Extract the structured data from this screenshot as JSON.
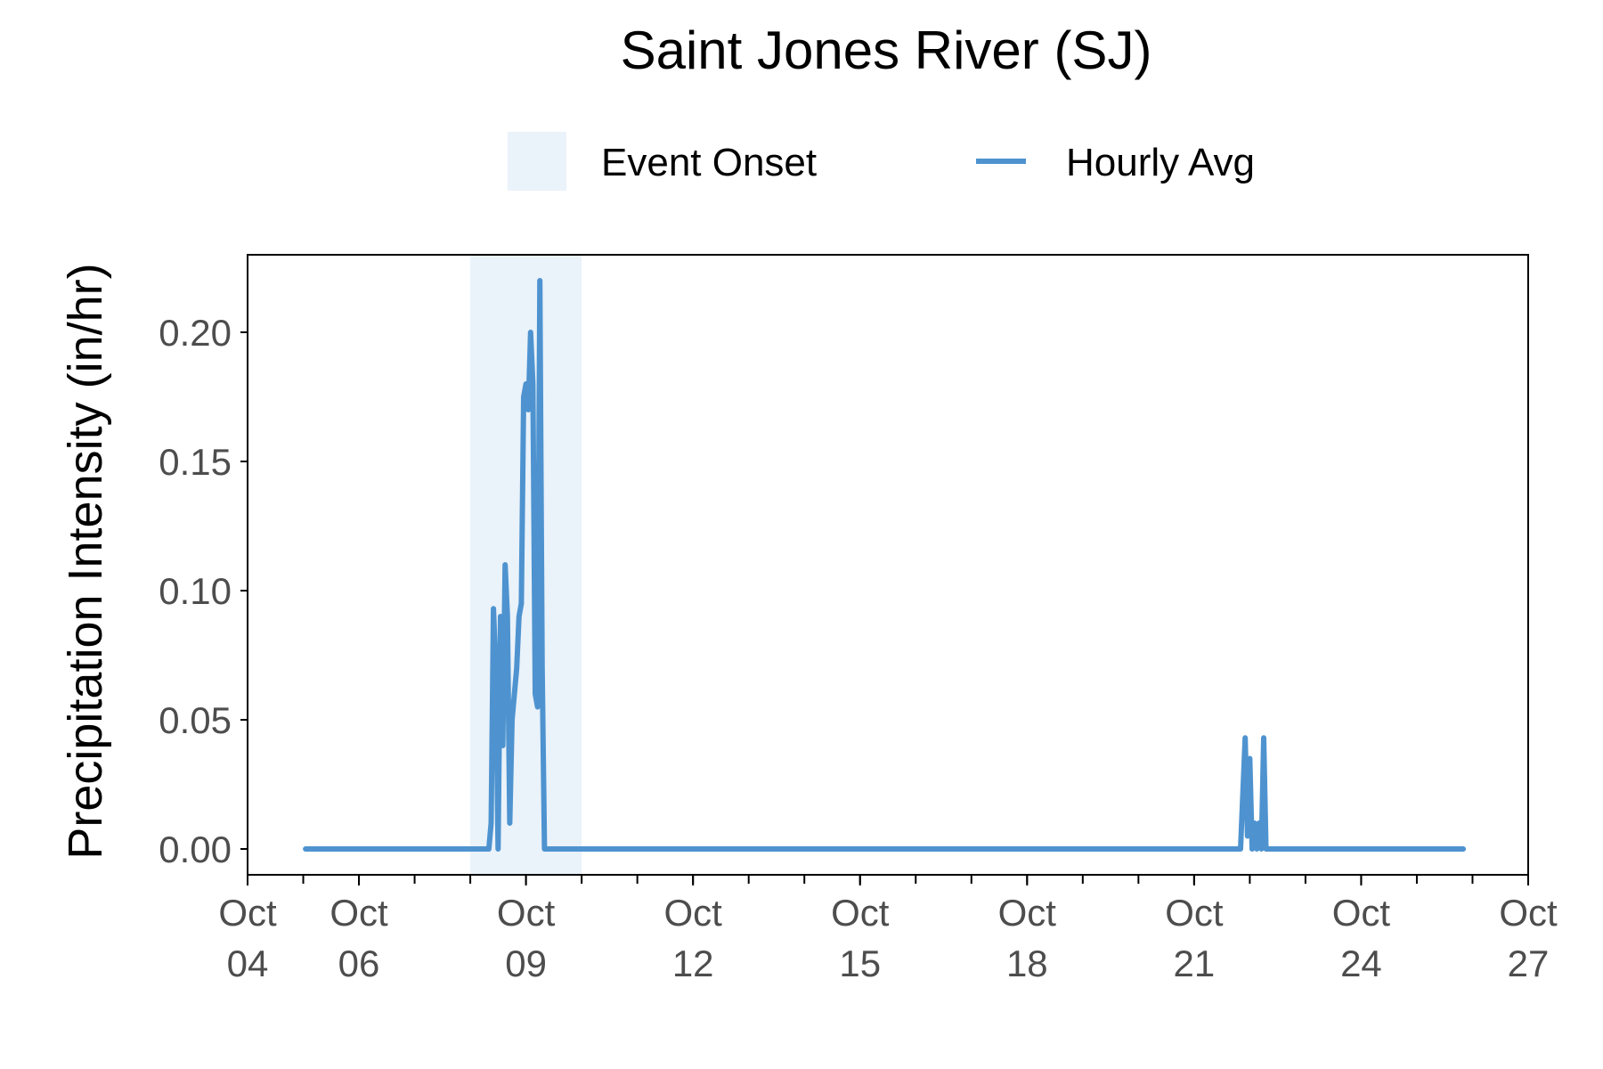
{
  "colors": {
    "line": "#4e93cf",
    "event_shade": "#eaf2fa",
    "axis": "#000000",
    "tick_text": "#4d4d4d"
  },
  "chart_data": {
    "type": "line",
    "title": "Saint Jones River (SJ)",
    "xlabel": "",
    "ylabel": "Precipitation Intensity (in/hr)",
    "legend": {
      "position": "top",
      "entries": [
        {
          "label": "Event Onset",
          "kind": "shaded-area"
        },
        {
          "label": "Hourly Avg",
          "kind": "line"
        }
      ]
    },
    "x_range": [
      "2023-10-04",
      "2023-10-27"
    ],
    "ylim": [
      -0.01,
      0.23
    ],
    "y_ticks": [
      0.0,
      0.05,
      0.1,
      0.15,
      0.2
    ],
    "y_tick_labels": [
      "0.00",
      "0.05",
      "0.10",
      "0.15",
      "0.20"
    ],
    "x_ticks": [
      {
        "date": "2023-10-04",
        "label": [
          "Oct",
          "04"
        ]
      },
      {
        "date": "2023-10-06",
        "label": [
          "Oct",
          "06"
        ]
      },
      {
        "date": "2023-10-09",
        "label": [
          "Oct",
          "09"
        ]
      },
      {
        "date": "2023-10-12",
        "label": [
          "Oct",
          "12"
        ]
      },
      {
        "date": "2023-10-15",
        "label": [
          "Oct",
          "15"
        ]
      },
      {
        "date": "2023-10-18",
        "label": [
          "Oct",
          "18"
        ]
      },
      {
        "date": "2023-10-21",
        "label": [
          "Oct",
          "21"
        ]
      },
      {
        "date": "2023-10-24",
        "label": [
          "Oct",
          "24"
        ]
      },
      {
        "date": "2023-10-27",
        "label": [
          "Oct",
          "27"
        ]
      }
    ],
    "event_onset": {
      "start": "2023-10-08 00:00",
      "end": "2023-10-10 00:00"
    },
    "grid": false,
    "series": [
      {
        "name": "Hourly Avg",
        "points": [
          [
            "2023-10-05 01:00",
            0.0
          ],
          [
            "2023-10-08 08:00",
            0.0
          ],
          [
            "2023-10-08 09:00",
            0.01
          ],
          [
            "2023-10-08 10:00",
            0.093
          ],
          [
            "2023-10-08 11:00",
            0.07
          ],
          [
            "2023-10-08 12:00",
            0.0
          ],
          [
            "2023-10-08 13:00",
            0.09
          ],
          [
            "2023-10-08 14:00",
            0.04
          ],
          [
            "2023-10-08 15:00",
            0.11
          ],
          [
            "2023-10-08 16:00",
            0.09
          ],
          [
            "2023-10-08 17:00",
            0.01
          ],
          [
            "2023-10-08 18:00",
            0.05
          ],
          [
            "2023-10-08 19:00",
            0.06
          ],
          [
            "2023-10-08 20:00",
            0.07
          ],
          [
            "2023-10-08 21:00",
            0.09
          ],
          [
            "2023-10-08 22:00",
            0.095
          ],
          [
            "2023-10-08 23:00",
            0.175
          ],
          [
            "2023-10-09 00:00",
            0.18
          ],
          [
            "2023-10-09 01:00",
            0.17
          ],
          [
            "2023-10-09 02:00",
            0.2
          ],
          [
            "2023-10-09 03:00",
            0.18
          ],
          [
            "2023-10-09 04:00",
            0.06
          ],
          [
            "2023-10-09 05:00",
            0.055
          ],
          [
            "2023-10-09 06:00",
            0.22
          ],
          [
            "2023-10-09 07:00",
            0.07
          ],
          [
            "2023-10-09 08:00",
            0.0
          ],
          [
            "2023-10-21 20:00",
            0.0
          ],
          [
            "2023-10-21 22:00",
            0.043
          ],
          [
            "2023-10-21 23:00",
            0.005
          ],
          [
            "2023-10-22 00:00",
            0.035
          ],
          [
            "2023-10-22 01:00",
            0.0
          ],
          [
            "2023-10-22 02:00",
            0.01
          ],
          [
            "2023-10-22 03:00",
            0.0
          ],
          [
            "2023-10-22 04:00",
            0.01
          ],
          [
            "2023-10-22 05:00",
            0.0
          ],
          [
            "2023-10-22 06:00",
            0.043
          ],
          [
            "2023-10-22 07:00",
            0.0
          ],
          [
            "2023-10-25 20:00",
            0.0
          ]
        ]
      }
    ]
  }
}
